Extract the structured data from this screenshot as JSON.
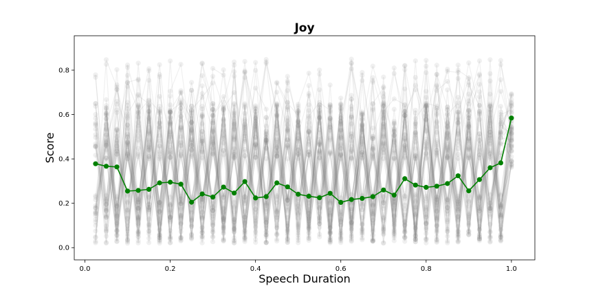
{
  "chart_data": {
    "type": "line",
    "title": "Joy",
    "xlabel": "Speech Duration",
    "ylabel": "Score",
    "xlim": [
      -0.025,
      1.055
    ],
    "ylim": [
      -0.055,
      0.955
    ],
    "xticks": [
      "0.0",
      "0.2",
      "0.4",
      "0.6",
      "0.8",
      "1.0"
    ],
    "yticks": [
      "0.0",
      "0.2",
      "0.4",
      "0.6",
      "0.8"
    ],
    "grid": false,
    "legend": "none",
    "colors": {
      "mean": "#008000",
      "background": "#808080"
    },
    "x": [
      0.025,
      0.05,
      0.075,
      0.1,
      0.125,
      0.15,
      0.175,
      0.2,
      0.225,
      0.25,
      0.275,
      0.3,
      0.325,
      0.35,
      0.375,
      0.4,
      0.425,
      0.45,
      0.475,
      0.5,
      0.525,
      0.55,
      0.575,
      0.6,
      0.625,
      0.65,
      0.675,
      0.7,
      0.725,
      0.75,
      0.775,
      0.8,
      0.825,
      0.85,
      0.875,
      0.9,
      0.925,
      0.95,
      0.975,
      1.0
    ],
    "series": [
      {
        "values": [
          0.378,
          0.367,
          0.364,
          0.255,
          0.258,
          0.263,
          0.292,
          0.295,
          0.286,
          0.205,
          0.242,
          0.228,
          0.273,
          0.246,
          0.298,
          0.224,
          0.23,
          0.292,
          0.274,
          0.241,
          0.232,
          0.225,
          0.245,
          0.204,
          0.217,
          0.222,
          0.23,
          0.26,
          0.237,
          0.311,
          0.282,
          0.272,
          0.277,
          0.289,
          0.324,
          0.256,
          0.307,
          0.36,
          0.382,
          0.584
        ]
      }
    ]
  }
}
